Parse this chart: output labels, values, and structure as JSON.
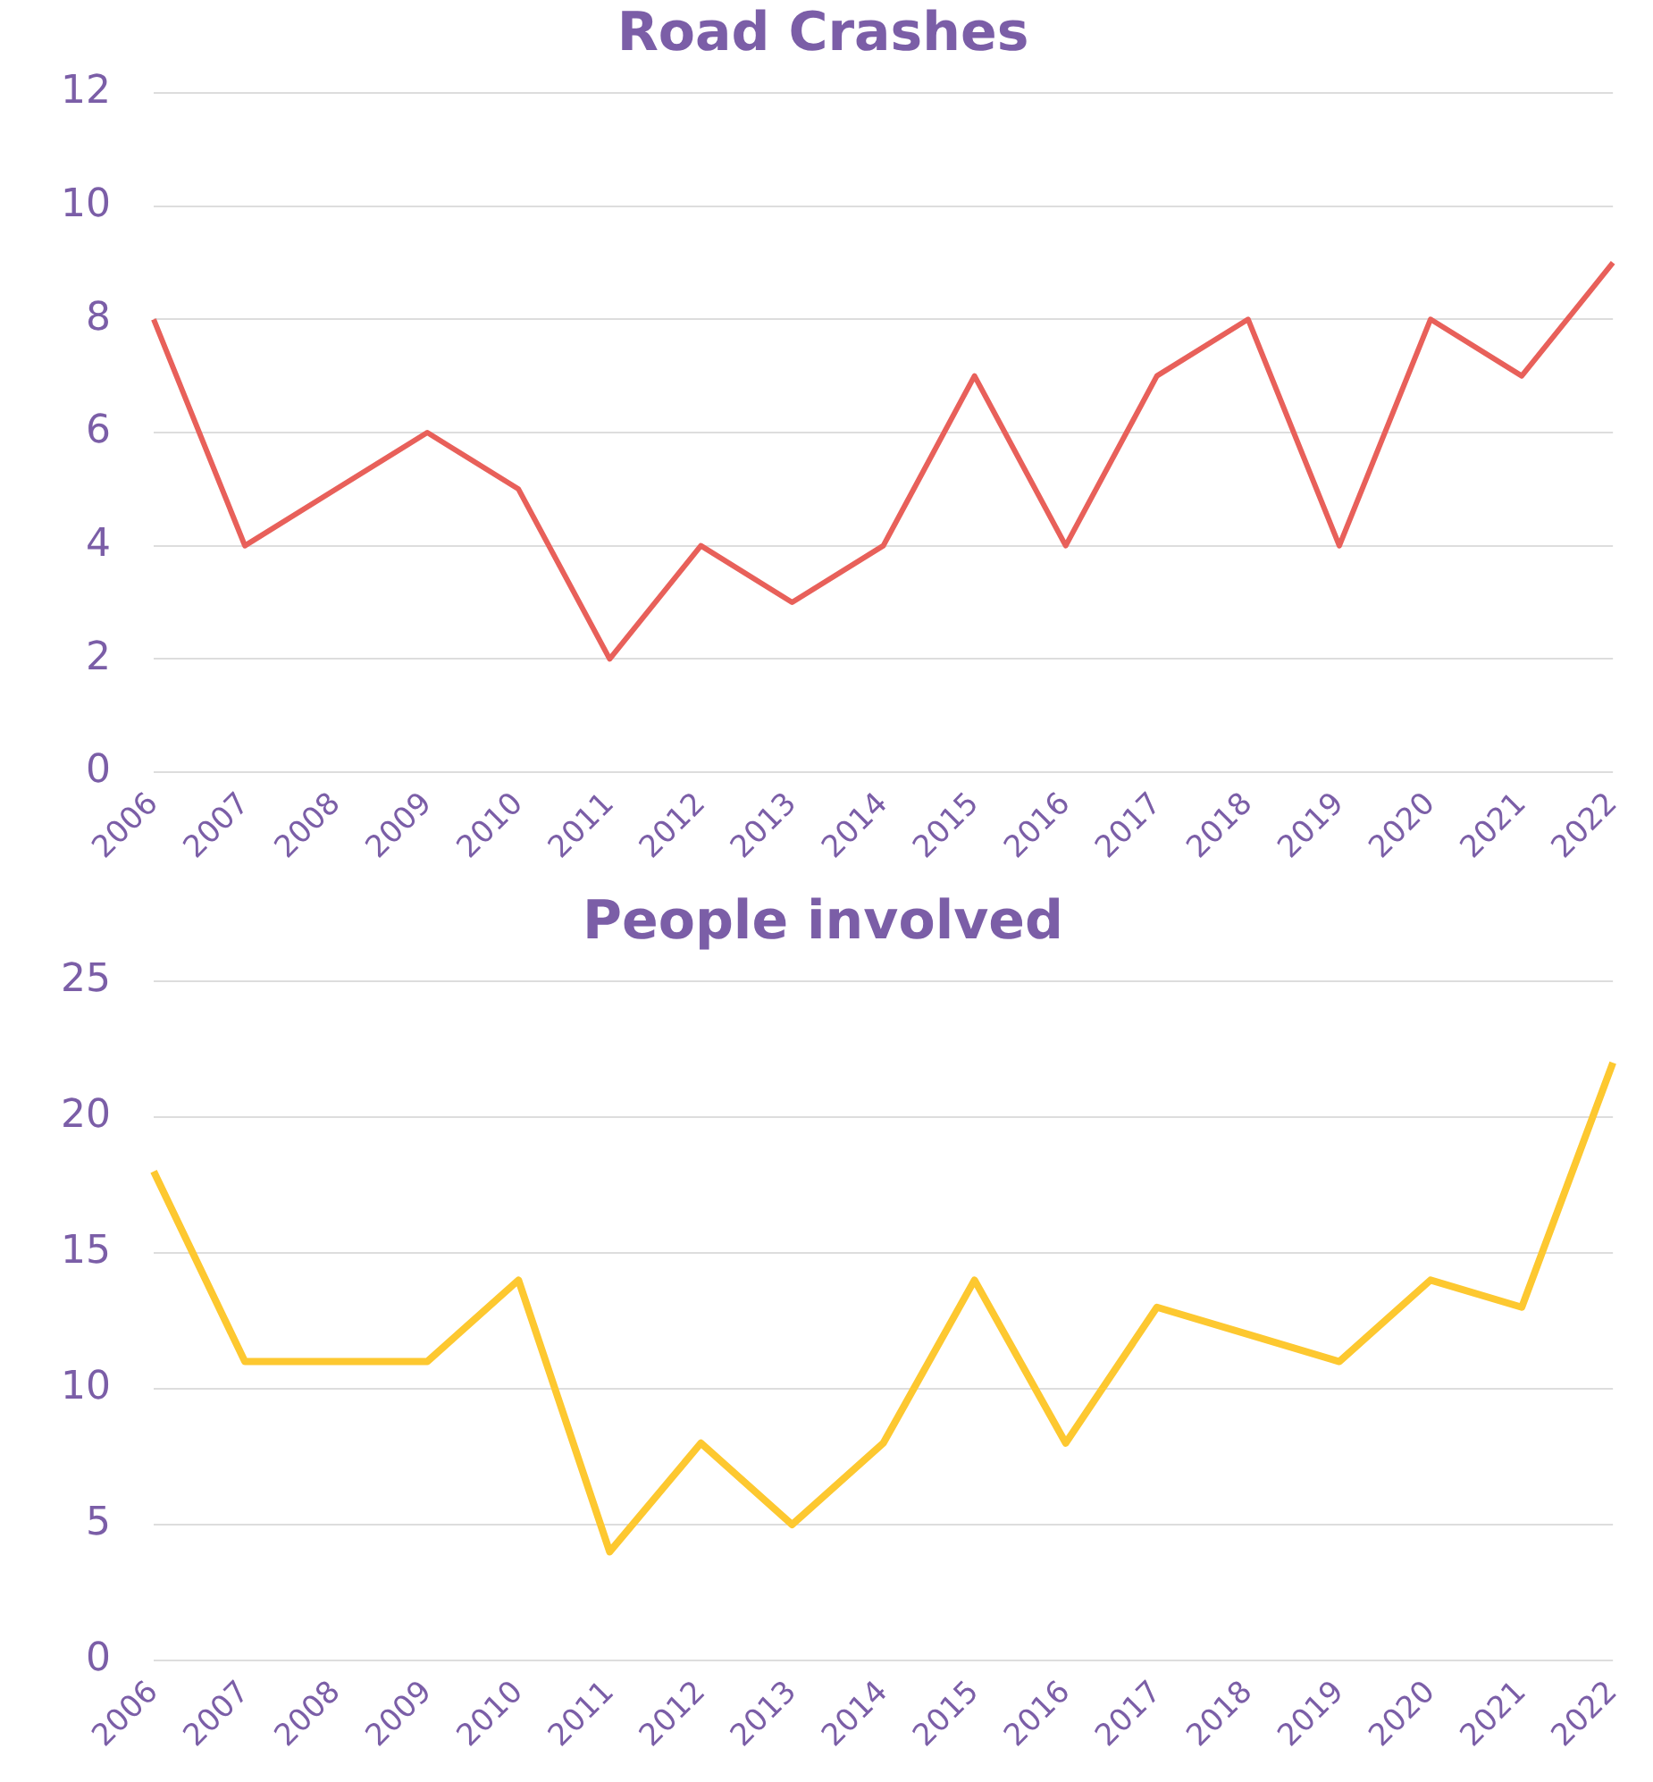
{
  "chart_data": [
    {
      "type": "line",
      "title": "Road Crashes",
      "categories": [
        "2006",
        "2007",
        "2008",
        "2009",
        "2010",
        "2011",
        "2012",
        "2013",
        "2014",
        "2015",
        "2016",
        "2017",
        "2018",
        "2019",
        "2020",
        "2021",
        "2022"
      ],
      "series": [
        {
          "color": "#e8605a",
          "values": [
            8,
            4,
            5,
            6,
            5,
            2,
            4,
            3,
            4,
            7,
            4,
            7,
            8,
            4,
            8,
            7,
            9
          ]
        }
      ],
      "ylim": [
        0,
        12
      ],
      "yticks": [
        0,
        2,
        4,
        6,
        8,
        10,
        12
      ],
      "grid": "y",
      "legend": false,
      "marker": "none"
    },
    {
      "type": "line",
      "title": "People involved",
      "categories": [
        "2006",
        "2007",
        "2008",
        "2009",
        "2010",
        "2011",
        "2012",
        "2013",
        "2014",
        "2015",
        "2016",
        "2017",
        "2018",
        "2019",
        "2020",
        "2021",
        "2022"
      ],
      "series": [
        {
          "color": "#fdc830",
          "values": [
            18,
            11,
            11,
            11,
            14,
            4,
            8,
            5,
            8,
            14,
            8,
            13,
            12,
            11,
            14,
            13,
            22
          ]
        }
      ],
      "ylim": [
        0,
        25
      ],
      "yticks": [
        0,
        5,
        10,
        15,
        20,
        25
      ],
      "grid": "y",
      "legend": false,
      "marker": "none"
    }
  ]
}
